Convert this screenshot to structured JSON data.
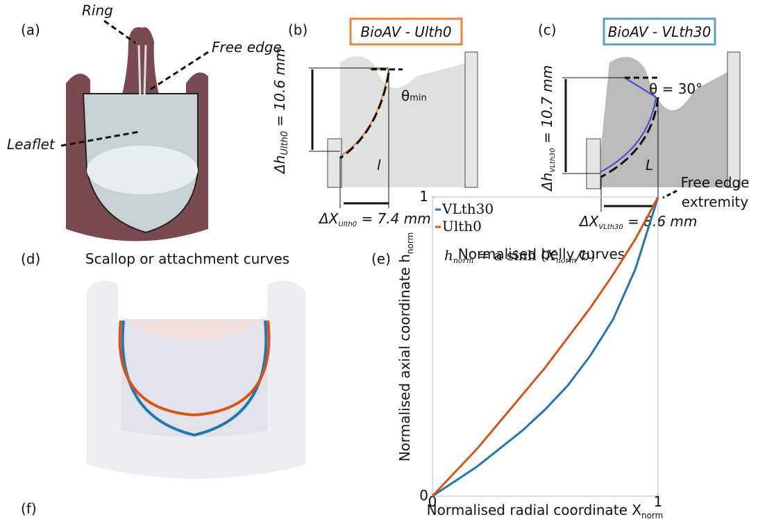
{
  "panels": {
    "a": {
      "label": "(a)",
      "ring": "Ring",
      "free_edge": "Free edge",
      "leaflet": "Leaflet"
    },
    "b": {
      "label": "(b)",
      "title": "BioAV - Ulth0",
      "theta": "θ",
      "theta_sub": "min",
      "length": "l",
      "dh": {
        "main": "Δh",
        "sub": "Ulth0",
        "rest": " = 10.6 mm"
      },
      "dx": {
        "main": "ΔX",
        "sub": "Ulth0",
        "rest": " = 7.4 mm"
      }
    },
    "c": {
      "label": "(c)",
      "title": "BioAV - VLth30",
      "theta": "θ = 30°",
      "length": "L",
      "dh": {
        "main": "Δh",
        "sub": "VLth30",
        "rest": " = 10.7 mm"
      },
      "dx": {
        "main": "ΔX",
        "sub": "VLth30",
        "rest": " = 8.6 mm"
      }
    },
    "d": {
      "label": "(d)",
      "title": "Scallop or attachment curves"
    },
    "e": {
      "label": "(e)",
      "formula": {
        "lhs": "h",
        "lhs_sub": "norm",
        "eq": " = a sinh (",
        "num": "X",
        "num_sub": "norm",
        "den": "b",
        "close": ")"
      },
      "annotation": [
        "Free edge",
        "extremity"
      ]
    },
    "f": {
      "label": "(f)"
    }
  },
  "chart_data": {
    "type": "line",
    "title": "Normalised belly curves",
    "xlabel": "Normalised radial coordinate X",
    "xlabel_sub": "norm",
    "ylabel": "Normalised axial coordinate h",
    "ylabel_sub": "norm",
    "x": [
      0,
      0.1,
      0.2,
      0.3,
      0.4,
      0.5,
      0.6,
      0.7,
      0.8,
      0.9,
      1
    ],
    "series": [
      {
        "name": "VLth30",
        "color": "#1f77b4",
        "values": [
          0,
          0.05,
          0.1,
          0.16,
          0.22,
          0.29,
          0.37,
          0.47,
          0.59,
          0.76,
          1
        ]
      },
      {
        "name": "Ulth0",
        "color": "#d95319",
        "values": [
          0,
          0.08,
          0.16,
          0.25,
          0.34,
          0.43,
          0.53,
          0.63,
          0.74,
          0.86,
          1
        ]
      }
    ],
    "xlim": [
      0,
      1
    ],
    "ylim": [
      0,
      1
    ],
    "xticks": [
      0,
      1
    ],
    "yticks": [
      0,
      1
    ],
    "legend": "upper left"
  }
}
